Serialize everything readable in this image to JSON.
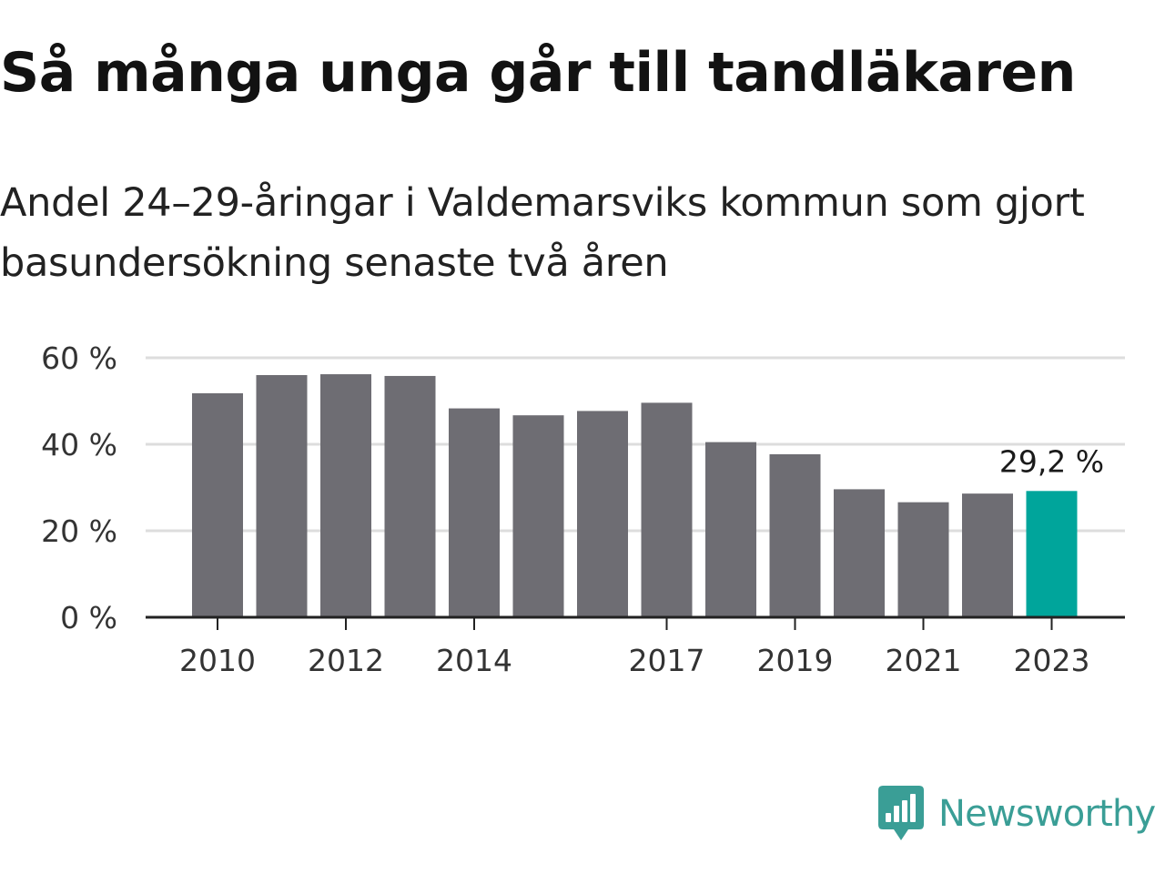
{
  "title": "Så många unga går till tandläkaren",
  "subtitle": "Andel 24–29-åringar i Valdemarsviks kommun som gjort basundersökning senaste två åren",
  "brand": {
    "name": "Newsworthy",
    "icon": "newsworthy-logo-icon"
  },
  "colors": {
    "bar": "#6e6d73",
    "highlight": "#00a59b",
    "grid": "#dddddd",
    "axis": "#222222",
    "brand": "#3a9e96"
  },
  "chart_data": {
    "type": "bar",
    "categories": [
      "2010",
      "2011",
      "2012",
      "2013",
      "2014",
      "2015",
      "2016",
      "2017",
      "2018",
      "2019",
      "2020",
      "2021",
      "2022",
      "2023"
    ],
    "values": [
      51.8,
      56.0,
      56.2,
      55.8,
      48.3,
      46.7,
      47.7,
      49.6,
      40.5,
      37.7,
      29.6,
      26.6,
      28.6,
      29.2
    ],
    "shown_x_ticks": [
      "2010",
      "2012",
      "2014",
      "2017",
      "2019",
      "2021",
      "2023"
    ],
    "y_ticks": [
      0,
      20,
      40,
      60
    ],
    "y_tick_labels": [
      "0 %",
      "20 %",
      "40 %",
      "60 %"
    ],
    "ylim": [
      0,
      60
    ],
    "highlight_index": 13,
    "highlight_label": "29,2 %",
    "grid": true,
    "xlabel": "",
    "ylabel": ""
  }
}
